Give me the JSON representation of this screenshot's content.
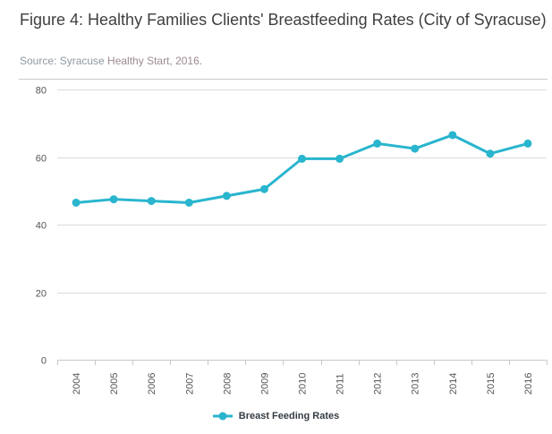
{
  "header": {
    "title": "Figure 4: Healthy Families Clients' Breastfeeding Rates (City of Syracuse)",
    "source_prefix": "Source: Syracuse ",
    "source_accent": "Healthy Start, 2016."
  },
  "colors": {
    "accent": "#29b5ce",
    "panel_border": "#cccccc",
    "grid": "#dbdbdb",
    "axis": "#c9c9c9",
    "axis_label": "#555555",
    "title_text": "#3f3f3f",
    "legend_text": "#363c42"
  },
  "chart_data": {
    "type": "line",
    "title": "Figure 4: Healthy Families Clients' Breastfeeding Rates (City of Syracuse)",
    "source": "Source: Syracuse Healthy Start, 2016.",
    "categories": [
      "2004",
      "2005",
      "2006",
      "2007",
      "2008",
      "2009",
      "2010",
      "2011",
      "2012",
      "2013",
      "2014",
      "2015",
      "2016"
    ],
    "series": [
      {
        "name": "Breast Feeding Rates",
        "color": "#29b5ce",
        "values": [
          46.5,
          47.5,
          47,
          46.5,
          48.5,
          50.5,
          59.5,
          59.5,
          64,
          62.5,
          66.5,
          61,
          64
        ]
      }
    ],
    "xlabel": "",
    "ylabel": "",
    "ylim": [
      0,
      80
    ],
    "yticks": [
      0,
      20,
      40,
      60,
      80
    ],
    "grid": true,
    "x_label_rotation": -90,
    "legend_position": "bottom"
  },
  "legend": {
    "label": "Breast Feeding Rates"
  }
}
